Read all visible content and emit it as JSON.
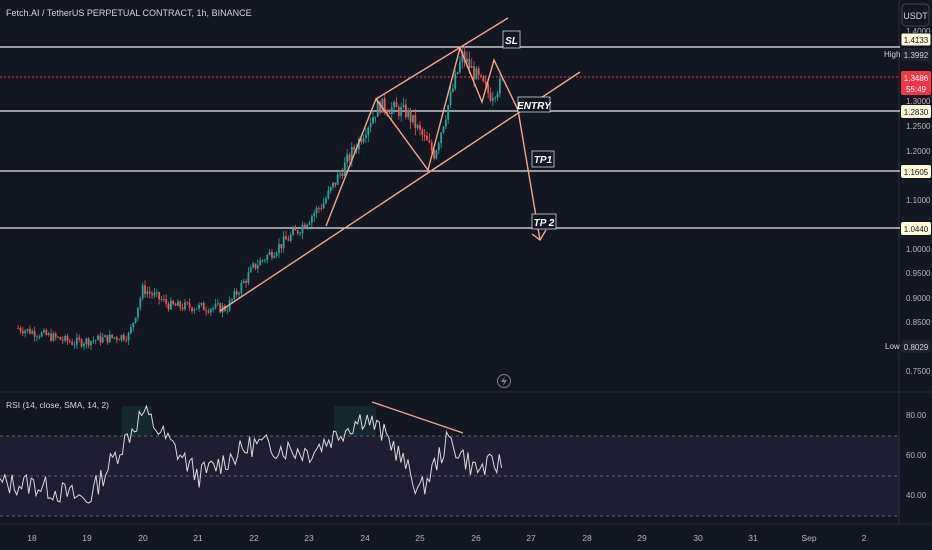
{
  "title": "Fetch.AI / TetherUS PERPETUAL CONTRACT, 1h, BINANCE",
  "currency_button": "USDT",
  "price_axis": {
    "ticks": [
      "1.4000",
      "1.3000",
      "1.2500",
      "1.2000",
      "1.1000",
      "1.0000",
      "0.9500",
      "0.9000",
      "0.8500",
      "0.7500"
    ],
    "boxed_levels": [
      {
        "label": "1.4133",
        "value": 1.4133,
        "style": "level"
      },
      {
        "label": "1.2830",
        "value": 1.283,
        "style": "level"
      },
      {
        "label": "1.1605",
        "value": 1.1605,
        "style": "level"
      },
      {
        "label": "1.0440",
        "value": 1.044,
        "style": "level"
      }
    ],
    "high": {
      "caption": "High",
      "label": "1.3992",
      "value": 1.3992
    },
    "low": {
      "caption": "Low",
      "label": "0.8029",
      "value": 0.8029
    },
    "last": {
      "label": "1.3486",
      "countdown": "55:49",
      "value": 1.3486
    }
  },
  "time_axis": {
    "labels": [
      "18",
      "19",
      "20",
      "21",
      "22",
      "23",
      "24",
      "25",
      "26",
      "27",
      "28",
      "29",
      "30",
      "31",
      "Sep",
      "2"
    ]
  },
  "annotations": {
    "sl": "SL",
    "entry": "ENTRY",
    "tp1": "TP1",
    "tp2": "TP 2"
  },
  "rsi": {
    "title": "RSI (14, close, SMA, 14, 2)",
    "ticks": [
      "80.00",
      "60.00",
      "40.00"
    ],
    "bands": {
      "upper": 70,
      "middle": 50,
      "lower": 30
    }
  },
  "colors": {
    "background": "#131722",
    "up": "#26a69a",
    "down": "#ef5350",
    "pattern": "#f4a58a",
    "rsi_line": "#d9d9d9",
    "rsi_band": "#7e57c2",
    "last_price": "#f23645"
  },
  "chart_data": {
    "type": "candlestick",
    "symbol": "FETUSDT.P",
    "interval": "1h",
    "approx_close_path": [
      {
        "x": "2024-08-17 18:00",
        "y": 0.845
      },
      {
        "x": "2024-08-18 18:00",
        "y": 0.815
      },
      {
        "x": "2024-08-19 18:00",
        "y": 0.83
      },
      {
        "x": "2024-08-20 00:00",
        "y": 0.925
      },
      {
        "x": "2024-08-20 12:00",
        "y": 0.89
      },
      {
        "x": "2024-08-21 12:00",
        "y": 0.885
      },
      {
        "x": "2024-08-22 00:00",
        "y": 0.97
      },
      {
        "x": "2024-08-22 18:00",
        "y": 1.04
      },
      {
        "x": "2024-08-23 06:00",
        "y": 1.1
      },
      {
        "x": "2024-08-24 06:00",
        "y": 1.3
      },
      {
        "x": "2024-08-24 18:00",
        "y": 1.285
      },
      {
        "x": "2024-08-25 06:00",
        "y": 1.2
      },
      {
        "x": "2024-08-25 18:00",
        "y": 1.4
      },
      {
        "x": "2024-08-26 06:00",
        "y": 1.32
      },
      {
        "x": "2024-08-26 12:00",
        "y": 1.3486
      }
    ],
    "horizontal_levels": [
      1.4133,
      1.283,
      1.1605,
      1.044
    ],
    "y_range": [
      0.73,
      1.45
    ],
    "rsi": {
      "ylim": [
        25,
        90
      ],
      "approx_points": [
        {
          "x": "2024-08-18 00:00",
          "y": 46
        },
        {
          "x": "2024-08-19 00:00",
          "y": 38
        },
        {
          "x": "2024-08-20 00:00",
          "y": 82
        },
        {
          "x": "2024-08-21 00:00",
          "y": 50
        },
        {
          "x": "2024-08-22 00:00",
          "y": 66
        },
        {
          "x": "2024-08-23 00:00",
          "y": 62
        },
        {
          "x": "2024-08-24 00:00",
          "y": 80
        },
        {
          "x": "2024-08-24 12:00",
          "y": 66
        },
        {
          "x": "2024-08-25 00:00",
          "y": 42
        },
        {
          "x": "2024-08-25 12:00",
          "y": 68
        },
        {
          "x": "2024-08-26 00:00",
          "y": 53
        },
        {
          "x": "2024-08-26 12:00",
          "y": 57
        }
      ]
    }
  }
}
